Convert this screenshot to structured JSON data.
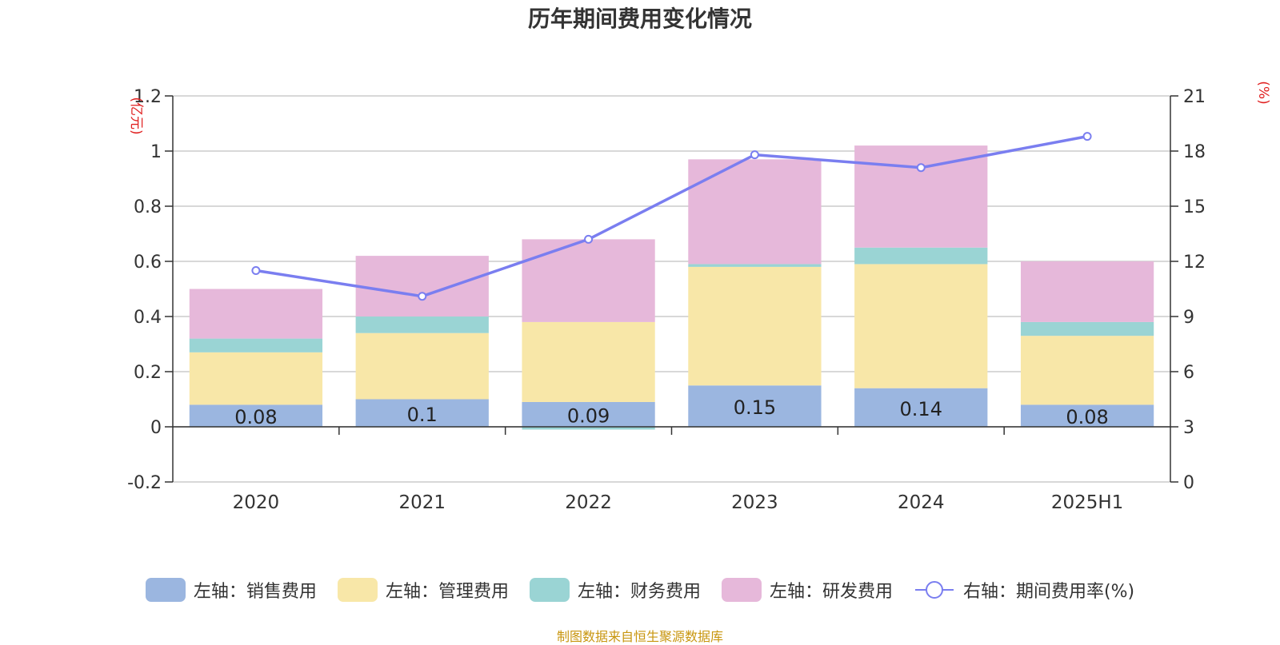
{
  "chart_data": {
    "type": "bar",
    "title": "历年期间费用变化情况",
    "categories": [
      "2020",
      "2021",
      "2022",
      "2023",
      "2024",
      "2025H1"
    ],
    "left_axis": {
      "unit_label": "(亿元)",
      "min": -0.2,
      "max": 1.2,
      "step": 0.2,
      "ticks": [
        "-0.2",
        "0",
        "0.2",
        "0.4",
        "0.6",
        "0.8",
        "1",
        "1.2"
      ]
    },
    "right_axis": {
      "unit_label": "(%)",
      "min": 0,
      "max": 21,
      "step": 3,
      "ticks": [
        "0",
        "3",
        "6",
        "9",
        "12",
        "15",
        "18",
        "21"
      ]
    },
    "series": [
      {
        "name": "左轴：销售费用",
        "type": "bar",
        "axis": "left",
        "color": "#9bb6e0",
        "values": [
          0.08,
          0.1,
          0.09,
          0.15,
          0.14,
          0.08
        ]
      },
      {
        "name": "左轴：管理费用",
        "type": "bar",
        "axis": "left",
        "color": "#f8e7a8",
        "values": [
          0.19,
          0.24,
          0.29,
          0.43,
          0.45,
          0.25
        ]
      },
      {
        "name": "左轴：财务费用",
        "type": "bar",
        "axis": "left",
        "color": "#9ad4d4",
        "values": [
          0.05,
          0.06,
          -0.01,
          0.01,
          0.06,
          0.05
        ]
      },
      {
        "name": "左轴：研发费用",
        "type": "bar",
        "axis": "left",
        "color": "#e6b8da",
        "values": [
          0.18,
          0.22,
          0.3,
          0.38,
          0.37,
          0.22
        ]
      },
      {
        "name": "右轴：期间费用率(%)",
        "type": "line",
        "axis": "right",
        "color": "#7a7ef0",
        "values": [
          11.5,
          10.1,
          13.2,
          17.8,
          17.1,
          18.8
        ]
      }
    ],
    "data_labels": [
      "0.08",
      "0.1",
      "0.09",
      "0.15",
      "0.14",
      "0.08"
    ],
    "grid": true,
    "legend_position": "bottom"
  },
  "source": "制图数据来自恒生聚源数据库"
}
